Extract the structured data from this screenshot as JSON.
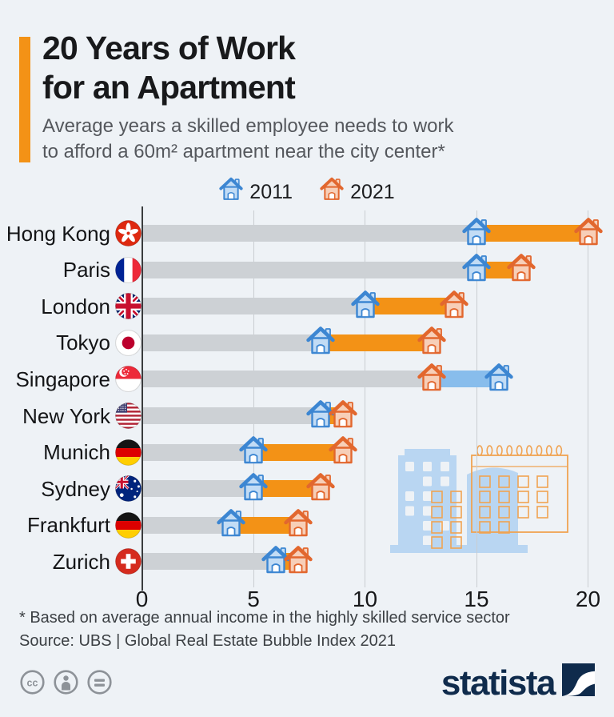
{
  "header": {
    "title_line1": "20 Years of Work",
    "title_line2": "for an Apartment",
    "subtitle_line1": "Average years a skilled employee needs to work",
    "subtitle_line2": "to afford a 60m² apartment near the city center*"
  },
  "legend": {
    "items": [
      {
        "label": "2011",
        "series": "2011"
      },
      {
        "label": "2021",
        "series": "2021"
      }
    ]
  },
  "chart_data": {
    "type": "bar",
    "variant": "dumbbell",
    "title": "20 Years of Work for an Apartment",
    "subtitle": "Average years a skilled employee needs to work to afford a 60m² apartment near the city center*",
    "categories": [
      "Hong Kong",
      "Paris",
      "London",
      "Tokyo",
      "Singapore",
      "New York",
      "Munich",
      "Sydney",
      "Frankfurt",
      "Zurich"
    ],
    "flags": [
      "hk",
      "fr",
      "gb",
      "jp",
      "sg",
      "us",
      "de",
      "au",
      "de",
      "ch"
    ],
    "series": [
      {
        "name": "2011",
        "values": [
          15,
          15,
          10,
          8,
          16,
          8,
          5,
          5,
          4,
          6
        ]
      },
      {
        "name": "2021",
        "values": [
          20,
          17,
          14,
          13,
          13,
          9,
          9,
          8,
          7,
          7
        ]
      }
    ],
    "xlabel": "",
    "ylabel": "",
    "xlim": [
      0,
      20
    ],
    "xticks": [
      0,
      5,
      10,
      15,
      20
    ],
    "grid": true,
    "legend_position": "top-center"
  },
  "footnote": "* Based on average annual income in the highly skilled service sector",
  "source": "Source: UBS | Global Real Estate Bubble Index 2021",
  "footer": {
    "brand": "statista",
    "license_icons": [
      "cc",
      "attribution",
      "equal"
    ]
  },
  "colors": {
    "background": "#eef2f6",
    "accent_orange": "#f39216",
    "bar_track": "#cdd1d5",
    "segment_orange": "#f39216",
    "segment_blue": "#88bdec",
    "house_blue_stroke": "#3c86d2",
    "house_blue_fill": "#c2dcf5",
    "house_orange_stroke": "#e2672e",
    "house_orange_fill": "#f7cfb8",
    "gridline": "#c9cdd1",
    "axis_line": "#3a3c3e",
    "title_text": "#18191b",
    "subtitle_text": "#55585d",
    "footnote_text": "#3c4044",
    "brand_navy": "#0f2b4c",
    "license_gray": "#8d9298",
    "illustration_blue": "#b9d6f2",
    "illustration_orange": "#f0a352"
  }
}
